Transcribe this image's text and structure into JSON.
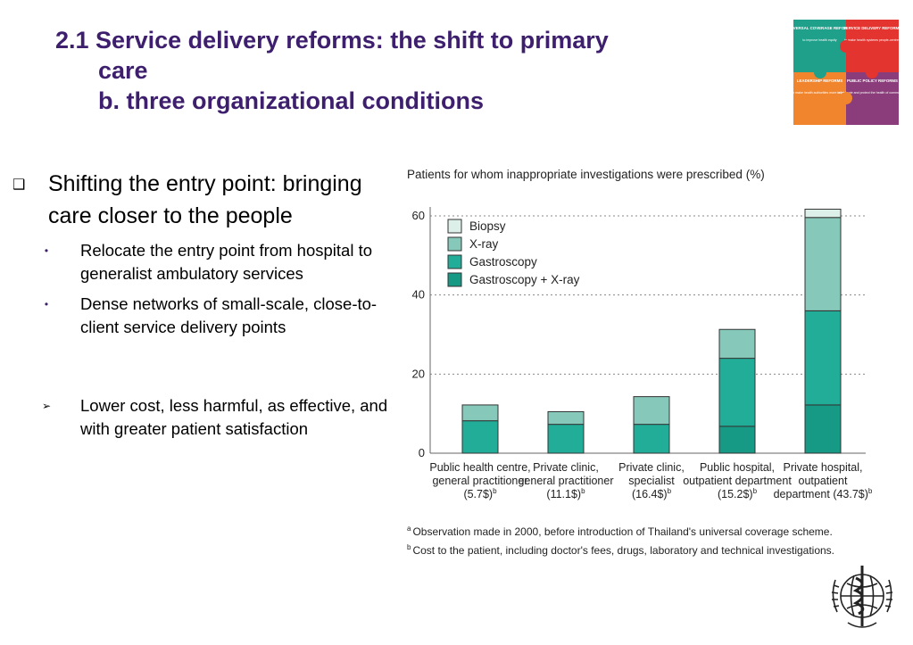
{
  "slide": {
    "title_line1": "2.1 Service delivery reforms: the shift to primary",
    "title_line2": "care",
    "title_line3": "b. three organizational conditions"
  },
  "puzzle": {
    "pieces": [
      {
        "title": "UNIVERSAL COVERAGE REFORMS",
        "desc": "to improve health equity",
        "color": "#1fa08a"
      },
      {
        "title": "SERVICE DELIVERY REFORMS",
        "desc": "to make health systems people-centred",
        "color": "#e3342f"
      },
      {
        "title": "LEADERSHIP REFORMS",
        "desc": "to make health authorities more reliable",
        "color": "#f0852d"
      },
      {
        "title": "PUBLIC POLICY REFORMS",
        "desc": "to promote and protect the health of communities",
        "color": "#8a3d7a"
      }
    ]
  },
  "bullets": {
    "main": "Shifting the entry point: bringing care closer to the people",
    "sub1": "Relocate the entry point from hospital to generalist ambulatory services",
    "sub2": "Dense networks of small-scale, close-to-client service delivery points",
    "sub3": "Lower cost, less harmful, as effective, and with greater patient satisfaction",
    "marker_main": "❑",
    "marker_sub": "•",
    "marker_arrow": "➢"
  },
  "chart_data": {
    "type": "bar",
    "stacked": true,
    "title": "Patients for whom inappropriate investigations were prescribed (%)",
    "categories": [
      [
        "Public health centre,",
        "general practitioner",
        "(5.7$)"
      ],
      [
        "Private clinic,",
        "general practitioner",
        "(11.1$)"
      ],
      [
        "Private clinic,",
        "specialist",
        "(16.4$)"
      ],
      [
        "Public hospital,",
        "outpatient department",
        "(15.2$)"
      ],
      [
        "Private hospital,",
        "outpatient",
        "department (43.7$)"
      ]
    ],
    "category_superscripts": [
      "b",
      "b",
      "b",
      "b",
      "b"
    ],
    "series": [
      {
        "name": "Gastroscopy + X-ray",
        "values": [
          0,
          0,
          0,
          6.8,
          12.2
        ],
        "color": "#179a85"
      },
      {
        "name": "Gastroscopy",
        "values": [
          8.2,
          7.3,
          7.3,
          17.2,
          23.8
        ],
        "color": "#21ad98"
      },
      {
        "name": "X-ray",
        "values": [
          4.0,
          3.2,
          7.0,
          7.3,
          23.6
        ],
        "color": "#86c8b9"
      },
      {
        "name": "Biopsy",
        "values": [
          0,
          0,
          0,
          0,
          2.1
        ],
        "color": "#dcefe9"
      }
    ],
    "legend_order": [
      "Biopsy",
      "X-ray",
      "Gastroscopy",
      "Gastroscopy + X-ray"
    ],
    "legend_position": "top-left",
    "ylim": [
      0,
      60
    ],
    "yticks": [
      0,
      20,
      40,
      60
    ],
    "grid": "dotted",
    "xlabel": "",
    "ylabel": "",
    "footnotes": [
      {
        "sup": "a",
        "text": "Observation made in 2000, before introduction of Thailand's universal coverage scheme."
      },
      {
        "sup": "b",
        "text": "Cost to the patient, including doctor's fees, drugs, laboratory and technical investigations."
      }
    ]
  }
}
